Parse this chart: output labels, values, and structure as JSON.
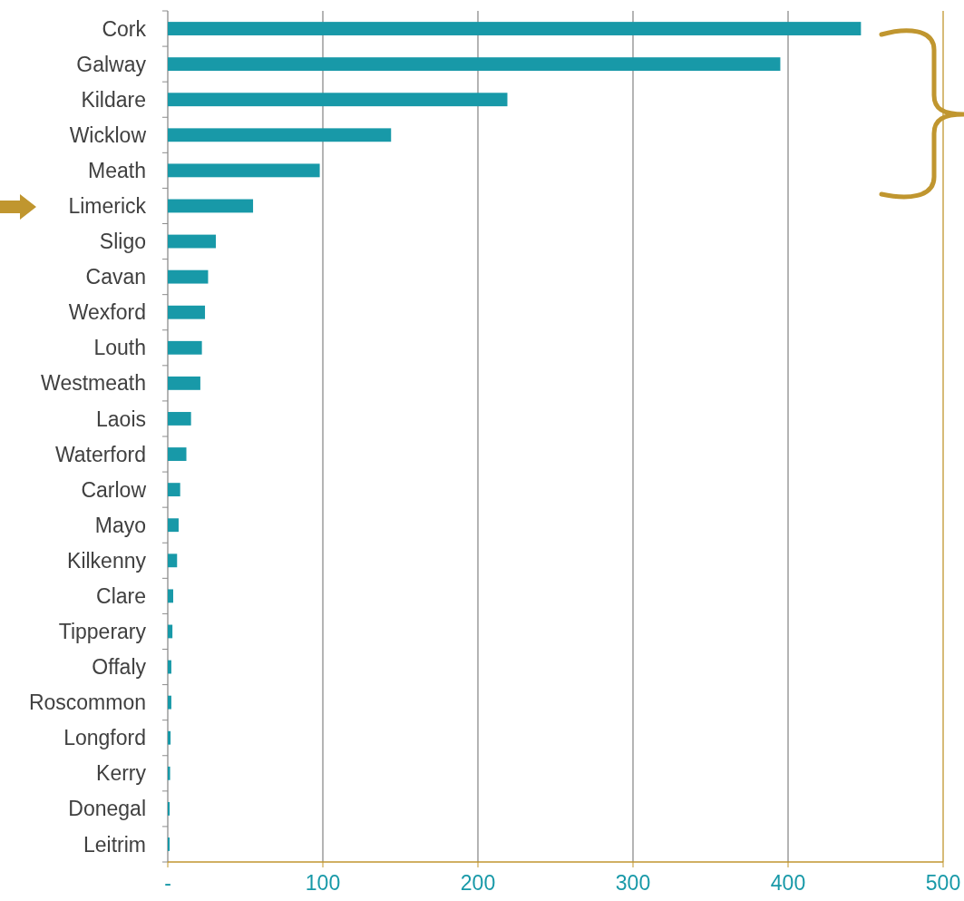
{
  "chart_data": {
    "type": "bar",
    "orientation": "horizontal",
    "categories": [
      "Cork",
      "Galway",
      "Kildare",
      "Wicklow",
      "Meath",
      "Limerick",
      "Sligo",
      "Cavan",
      "Wexford",
      "Louth",
      "Westmeath",
      "Laois",
      "Waterford",
      "Carlow",
      "Mayo",
      "Kilkenny",
      "Clare",
      "Tipperary",
      "Offaly",
      "Roscommon",
      "Longford",
      "Kerry",
      "Donegal",
      "Leitrim"
    ],
    "values": [
      447,
      395,
      219,
      144,
      98,
      55,
      31,
      26,
      24,
      22,
      21,
      15,
      12,
      8,
      7,
      6,
      3.5,
      3,
      2.3,
      2.3,
      1.8,
      1.5,
      1.2,
      1.2
    ],
    "color": "#1899a8",
    "xlim": [
      0,
      500
    ],
    "xticks": [
      {
        "value": 0,
        "label": "-"
      },
      100,
      200,
      300,
      400,
      500
    ],
    "grid": "x"
  }
}
